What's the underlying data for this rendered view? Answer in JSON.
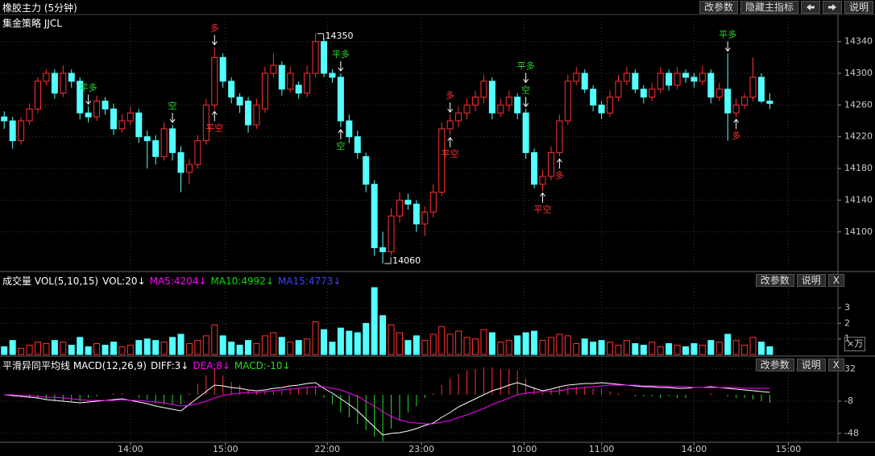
{
  "header": {
    "title": "橡胶主力 (5分钟)",
    "buttons": [
      "改参数",
      "隐藏主指标",
      "说明"
    ]
  },
  "chart_data": [
    {
      "type": "candlestick",
      "title": "集金策略 JJCL",
      "up_color": "#ff3232",
      "down_color": "#54ffff",
      "ylim": [
        14052,
        14362
      ],
      "yticks": [
        14100,
        14140,
        14180,
        14220,
        14260,
        14300,
        14340
      ],
      "xlim": [
        -0.5,
        99.1
      ],
      "xticks": [
        {
          "value": 15,
          "label": "14:00"
        },
        {
          "value": 26.3,
          "label": "15:00"
        },
        {
          "value": 38.4,
          "label": "22:00"
        },
        {
          "value": 49.6,
          "label": "23:00"
        },
        {
          "value": 61.8,
          "label": "10:00"
        },
        {
          "value": 71,
          "label": "11:00"
        },
        {
          "value": 82,
          "label": "14:00"
        },
        {
          "value": 93.2,
          "label": "15:00"
        }
      ],
      "grid": true,
      "candles": [
        [
          14245,
          14252,
          14230,
          14240
        ],
        [
          14240,
          14245,
          14205,
          14215
        ],
        [
          14215,
          14245,
          14210,
          14240
        ],
        [
          14240,
          14262,
          14235,
          14255
        ],
        [
          14255,
          14295,
          14250,
          14290
        ],
        [
          14290,
          14305,
          14285,
          14300
        ],
        [
          14300,
          14305,
          14268,
          14275
        ],
        [
          14275,
          14310,
          14270,
          14300
        ],
        [
          14300,
          14305,
          14282,
          14290
        ],
        [
          14290,
          14295,
          14242,
          14250
        ],
        [
          14250,
          14258,
          14238,
          14245
        ],
        [
          14245,
          14272,
          14240,
          14265
        ],
        [
          14265,
          14270,
          14248,
          14255
        ],
        [
          14255,
          14262,
          14222,
          14230
        ],
        [
          14230,
          14248,
          14225,
          14240
        ],
        [
          14240,
          14258,
          14235,
          14250
        ],
        [
          14250,
          14255,
          14212,
          14220
        ],
        [
          14220,
          14228,
          14180,
          14215
        ],
        [
          14215,
          14222,
          14185,
          14195
        ],
        [
          14195,
          14238,
          14190,
          14230
        ],
        [
          14230,
          14235,
          14190,
          14200
        ],
        [
          14200,
          14208,
          14150,
          14175
        ],
        [
          14175,
          14192,
          14160,
          14185
        ],
        [
          14185,
          14222,
          14180,
          14215
        ],
        [
          14215,
          14268,
          14210,
          14260
        ],
        [
          14260,
          14333,
          14255,
          14320
        ],
        [
          14320,
          14325,
          14282,
          14290
        ],
        [
          14290,
          14295,
          14262,
          14270
        ],
        [
          14270,
          14275,
          14250,
          14260
        ],
        [
          14265,
          14270,
          14225,
          14235
        ],
        [
          14235,
          14268,
          14230,
          14260
        ],
        [
          14255,
          14308,
          14250,
          14300
        ],
        [
          14300,
          14325,
          14295,
          14310
        ],
        [
          14310,
          14315,
          14272,
          14280
        ],
        [
          14280,
          14308,
          14275,
          14300
        ],
        [
          14285,
          14290,
          14268,
          14275
        ],
        [
          14275,
          14310,
          14270,
          14300
        ],
        [
          14300,
          14350,
          14295,
          14340
        ],
        [
          14340,
          14345,
          14295,
          14300
        ],
        [
          14300,
          14305,
          14288,
          14295
        ],
        [
          14295,
          14300,
          14232,
          14240
        ],
        [
          14240,
          14248,
          14212,
          14220
        ],
        [
          14220,
          14228,
          14192,
          14200
        ],
        [
          14195,
          14200,
          14150,
          14160
        ],
        [
          14160,
          14165,
          14070,
          14080
        ],
        [
          14080,
          14100,
          14060,
          14075
        ],
        [
          14075,
          14130,
          14070,
          14120
        ],
        [
          14120,
          14150,
          14112,
          14140
        ],
        [
          14140,
          14148,
          14128,
          14135
        ],
        [
          14135,
          14140,
          14100,
          14110
        ],
        [
          14110,
          14132,
          14095,
          14125
        ],
        [
          14125,
          14160,
          14118,
          14150
        ],
        [
          14150,
          14238,
          14145,
          14230
        ],
        [
          14230,
          14248,
          14222,
          14240
        ],
        [
          14240,
          14258,
          14232,
          14250
        ],
        [
          14250,
          14268,
          14242,
          14260
        ],
        [
          14260,
          14278,
          14252,
          14270
        ],
        [
          14270,
          14298,
          14262,
          14290
        ],
        [
          14290,
          14295,
          14242,
          14250
        ],
        [
          14250,
          14268,
          14245,
          14260
        ],
        [
          14260,
          14278,
          14252,
          14270
        ],
        [
          14270,
          14275,
          14242,
          14250
        ],
        [
          14250,
          14255,
          14192,
          14200
        ],
        [
          14200,
          14205,
          14155,
          14160
        ],
        [
          14160,
          14178,
          14152,
          14170
        ],
        [
          14170,
          14208,
          14165,
          14200
        ],
        [
          14200,
          14248,
          14195,
          14240
        ],
        [
          14240,
          14298,
          14235,
          14290
        ],
        [
          14290,
          14308,
          14285,
          14300
        ],
        [
          14300,
          14305,
          14275,
          14280
        ],
        [
          14280,
          14285,
          14252,
          14260
        ],
        [
          14260,
          14265,
          14242,
          14250
        ],
        [
          14250,
          14278,
          14245,
          14270
        ],
        [
          14270,
          14298,
          14265,
          14290
        ],
        [
          14290,
          14308,
          14285,
          14300
        ],
        [
          14300,
          14305,
          14275,
          14280
        ],
        [
          14280,
          14285,
          14262,
          14270
        ],
        [
          14270,
          14288,
          14265,
          14280
        ],
        [
          14280,
          14308,
          14275,
          14300
        ],
        [
          14300,
          14305,
          14278,
          14285
        ],
        [
          14285,
          14308,
          14280,
          14300
        ],
        [
          14300,
          14305,
          14288,
          14295
        ],
        [
          14295,
          14300,
          14282,
          14290
        ],
        [
          14290,
          14310,
          14285,
          14300
        ],
        [
          14300,
          14305,
          14262,
          14270
        ],
        [
          14270,
          14288,
          14265,
          14280
        ],
        [
          14280,
          14325,
          14215,
          14250
        ],
        [
          14250,
          14268,
          14245,
          14260
        ],
        [
          14260,
          14275,
          14255,
          14270
        ],
        [
          14270,
          14320,
          14265,
          14295
        ],
        [
          14295,
          14300,
          14262,
          14265
        ],
        [
          14265,
          14275,
          14255,
          14262
        ]
      ],
      "annotations": [
        {
          "candle": 37,
          "value": 14350
        },
        {
          "candle": 45,
          "value": 14060
        }
      ],
      "signals": [
        {
          "label": "平多",
          "candle": 10,
          "side": "above",
          "color": "#22dd22"
        },
        {
          "label": "空",
          "candle": 20,
          "side": "above",
          "color": "#22dd22"
        },
        {
          "label": "多",
          "candle": 25,
          "side": "above",
          "color": "#ff3232"
        },
        {
          "label": "平空",
          "candle": 25,
          "side": "below",
          "color": "#ff3232"
        },
        {
          "label": "平多",
          "candle": 40,
          "side": "above",
          "color": "#22dd22"
        },
        {
          "label": "空",
          "candle": 40,
          "side": "below",
          "color": "#22dd22"
        },
        {
          "label": "多",
          "candle": 53,
          "side": "above",
          "color": "#ff3232"
        },
        {
          "label": "平空",
          "candle": 53,
          "side": "below",
          "color": "#ff3232"
        },
        {
          "label": "空",
          "candle": 62,
          "side": "above",
          "color": "#22dd22"
        },
        {
          "label": "平多",
          "candle": 62,
          "side": "above",
          "color": "#22dd22"
        },
        {
          "label": "平空",
          "candle": 64,
          "side": "below",
          "color": "#ff3232"
        },
        {
          "label": "多",
          "candle": 66,
          "side": "below",
          "color": "#ff3232"
        },
        {
          "label": "平多",
          "candle": 86,
          "side": "above",
          "color": "#22dd22"
        },
        {
          "label": "多",
          "candle": 87,
          "side": "below",
          "color": "#ff3232"
        }
      ]
    },
    {
      "type": "bar",
      "unit": "×万",
      "buttons": [
        "改参数",
        "说明",
        "X"
      ],
      "legend": [
        {
          "text": "成交量 VOL(5,10,15)",
          "color": "#ffffff"
        },
        {
          "text": "VOL:20↓",
          "color": "#ffffff"
        },
        {
          "text": "MA5:4204↓",
          "color": "#ff00ff"
        },
        {
          "text": "MA10:4992↓",
          "color": "#00e000"
        },
        {
          "text": "MA15:4773↓",
          "color": "#4040ff"
        }
      ],
      "ylim": [
        0,
        4.25
      ],
      "yticks": [
        1,
        2,
        3
      ],
      "values": [
        0.5,
        0.9,
        0.4,
        0.6,
        0.8,
        0.7,
        0.9,
        0.8,
        0.6,
        1.1,
        0.5,
        0.7,
        0.6,
        0.8,
        0.5,
        0.6,
        0.9,
        1.0,
        0.9,
        0.8,
        1.1,
        1.3,
        0.7,
        0.9,
        1.2,
        1.9,
        1.2,
        0.8,
        0.6,
        0.9,
        0.7,
        1.2,
        1.4,
        1.1,
        0.8,
        0.9,
        1.0,
        2.1,
        1.6,
        0.8,
        1.7,
        1.5,
        1.4,
        2.0,
        4.3,
        2.5,
        1.9,
        1.4,
        0.9,
        1.2,
        0.9,
        1.3,
        1.8,
        1.3,
        1.5,
        1.1,
        1.0,
        1.6,
        1.4,
        0.8,
        0.9,
        1.2,
        1.4,
        1.5,
        0.9,
        1.1,
        1.3,
        1.2,
        0.7,
        1.0,
        0.8,
        0.9,
        0.8,
        0.6,
        0.9,
        0.7,
        0.6,
        0.8,
        0.5,
        0.7,
        0.6,
        0.5,
        0.7,
        0.6,
        0.9,
        0.8,
        1.3,
        0.9,
        0.6,
        1.1,
        0.8,
        0.5
      ]
    },
    {
      "type": "macd",
      "buttons": [
        "改参数",
        "说明",
        "X"
      ],
      "up_color": "#ff3232",
      "down_color": "#22dd22",
      "legend": [
        {
          "text": "平滑异同平均线 MACD(12,26,9)",
          "color": "#ffffff"
        },
        {
          "text": "DIFF:3↓",
          "color": "#ffffff"
        },
        {
          "text": "DEA:8↓",
          "color": "#ff00ff"
        },
        {
          "text": "MACD:-10↓",
          "color": "#22dd22"
        }
      ],
      "ylim": [
        -58,
        38
      ],
      "yticks": [
        32,
        -8,
        -48
      ],
      "series": [
        {
          "color": "#ffffff",
          "values": [
            0,
            -1,
            -2,
            -3,
            -4,
            -6,
            -7,
            -8,
            -9,
            -10,
            -9,
            -8,
            -7,
            -6,
            -5,
            -7,
            -9,
            -11,
            -14,
            -16,
            -18,
            -20,
            -12,
            -4,
            4,
            12,
            11,
            9,
            8,
            6,
            5,
            6,
            8,
            9,
            11,
            12,
            14,
            15,
            8,
            2,
            -5,
            -12,
            -20,
            -30,
            -40,
            -50,
            -48,
            -47,
            -45,
            -42,
            -38,
            -35,
            -28,
            -22,
            -15,
            -10,
            -5,
            0,
            5,
            8,
            12,
            15,
            12,
            8,
            5,
            7,
            10,
            12,
            13,
            14,
            14,
            15,
            14,
            13,
            12,
            11,
            10,
            10,
            9,
            9,
            8,
            8,
            9,
            9,
            10,
            9,
            8,
            7,
            6,
            5,
            4,
            3
          ]
        },
        {
          "color": "#ff00ff",
          "values": [
            0,
            0,
            -1,
            -1,
            -2,
            -3,
            -3,
            -4,
            -5,
            -6,
            -7,
            -7,
            -7,
            -7,
            -6,
            -7,
            -7,
            -8,
            -9,
            -10,
            -12,
            -14,
            -13,
            -11,
            -8,
            -4,
            -1,
            1,
            2,
            3,
            3,
            4,
            5,
            6,
            7,
            8,
            9,
            10,
            10,
            8,
            6,
            2,
            -2,
            -8,
            -14,
            -21,
            -27,
            -31,
            -34,
            -35,
            -36,
            -36,
            -34,
            -32,
            -28,
            -25,
            -21,
            -17,
            -12,
            -8,
            -4,
            0,
            2,
            3,
            4,
            4,
            5,
            7,
            8,
            9,
            10,
            11,
            12,
            12,
            12,
            12,
            11,
            11,
            11,
            10,
            10,
            10,
            9,
            9,
            9,
            9,
            9,
            9,
            8,
            8,
            8,
            8
          ]
        }
      ],
      "values": [
        0,
        -2,
        -2,
        -4,
        -4,
        -6,
        -8,
        -8,
        -8,
        -8,
        -4,
        -2,
        0,
        2,
        2,
        0,
        -4,
        -6,
        -10,
        -12,
        -12,
        -12,
        2,
        14,
        24,
        32,
        24,
        16,
        12,
        6,
        4,
        4,
        6,
        6,
        8,
        8,
        10,
        10,
        -4,
        -12,
        -22,
        -28,
        -36,
        -44,
        -52,
        -58,
        -42,
        -32,
        -22,
        -14,
        -4,
        2,
        12,
        20,
        26,
        30,
        32,
        34,
        34,
        32,
        32,
        30,
        20,
        10,
        2,
        6,
        10,
        10,
        10,
        10,
        8,
        8,
        4,
        2,
        0,
        -2,
        -2,
        -2,
        -4,
        -2,
        -4,
        -4,
        0,
        0,
        2,
        0,
        -2,
        -4,
        -4,
        -6,
        -8,
        -10
      ]
    }
  ]
}
